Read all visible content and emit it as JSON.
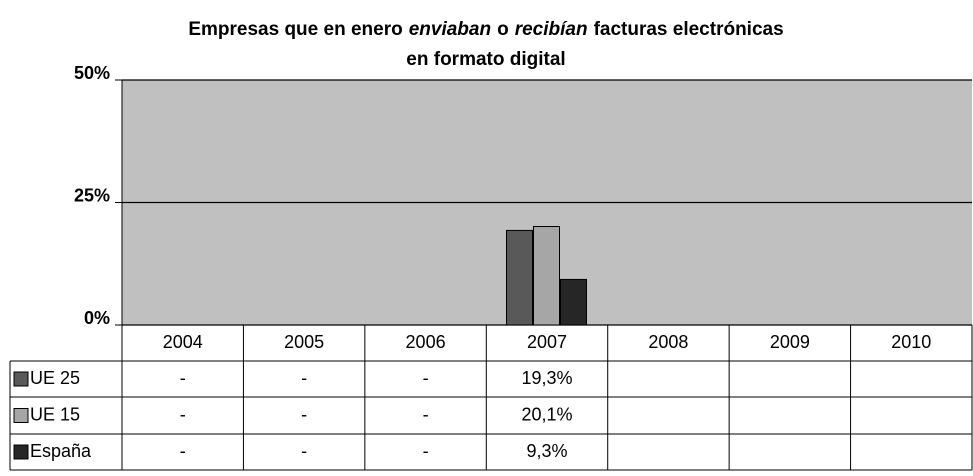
{
  "chart_data": {
    "type": "bar",
    "title": [
      "Empresas que en enero",
      "enviaban",
      "o",
      "recibían",
      "facturas electrónicas",
      "en formato digital"
    ],
    "title_italic": [
      false,
      true,
      false,
      true,
      false,
      false
    ],
    "categories": [
      "2004",
      "2005",
      "2006",
      "2007",
      "2008",
      "2009",
      "2010"
    ],
    "series": [
      {
        "name": "UE 25",
        "color": "#595959",
        "values": [
          null,
          null,
          null,
          19.3,
          null,
          null,
          null
        ],
        "value_labels": [
          "-",
          "-",
          "-",
          "19,3%",
          null,
          null,
          null
        ]
      },
      {
        "name": "UE 15",
        "color": "#a6a6a6",
        "values": [
          null,
          null,
          null,
          20.1,
          null,
          null,
          null
        ],
        "value_labels": [
          "-",
          "-",
          "-",
          "20,1%",
          null,
          null,
          null
        ]
      },
      {
        "name": "España",
        "color": "#262626",
        "values": [
          null,
          null,
          null,
          9.3,
          null,
          null,
          null
        ],
        "value_labels": [
          "-",
          "-",
          "-",
          "9,3%",
          null,
          null,
          null
        ]
      }
    ],
    "ylim": [
      0,
      50
    ],
    "yticks": [
      {
        "value": 0,
        "label": "0%"
      },
      {
        "value": 25,
        "label": "25%"
      },
      {
        "value": 50,
        "label": "50%"
      }
    ],
    "grid": true,
    "plot_background": "#c0c0c0"
  }
}
